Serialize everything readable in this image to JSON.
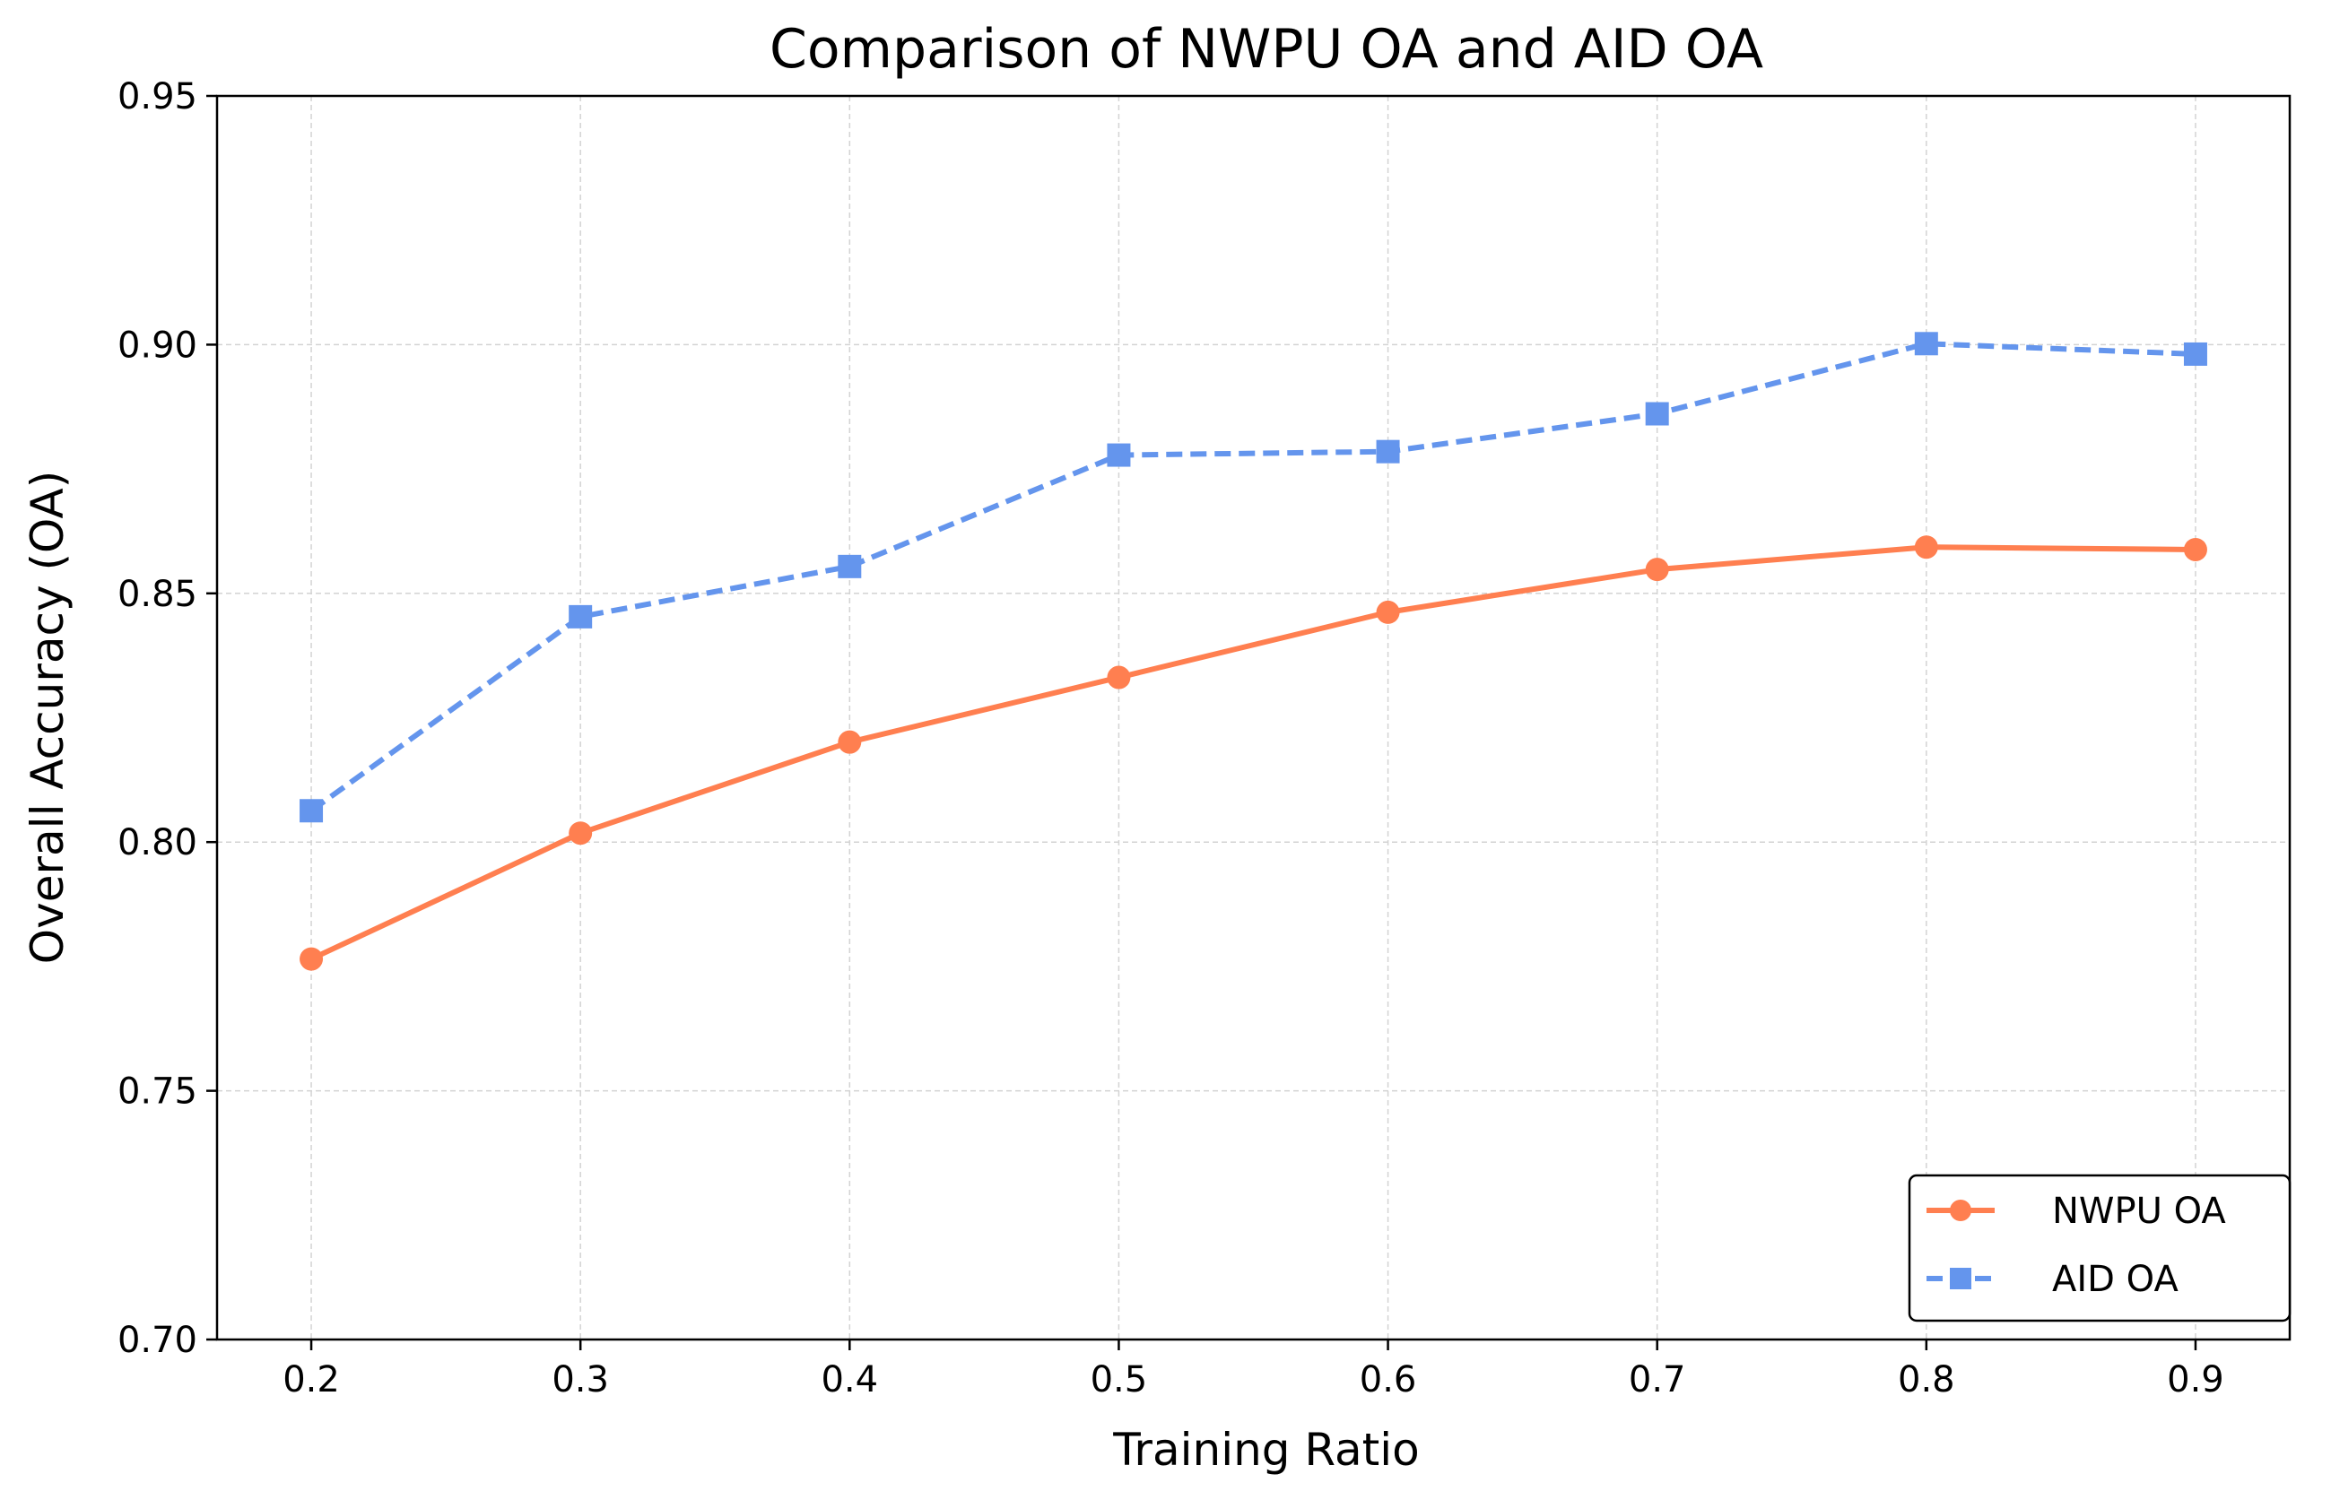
{
  "chart_data": {
    "type": "line",
    "title": "Comparison of NWPU OA and AID OA",
    "xlabel": "Training Ratio",
    "ylabel": "Overall Accuracy (OA)",
    "x": [
      0.2,
      0.3,
      0.4,
      0.5,
      0.6,
      0.7,
      0.8,
      0.9
    ],
    "xticks": [
      "0.2",
      "0.3",
      "0.4",
      "0.5",
      "0.6",
      "0.7",
      "0.8",
      "0.9"
    ],
    "yticks": [
      "0.70",
      "0.75",
      "0.80",
      "0.85",
      "0.90",
      "0.95"
    ],
    "ylim": [
      0.7,
      0.95
    ],
    "xlim": [
      0.165,
      0.935
    ],
    "grid": true,
    "legend_position": "lower-right",
    "series": [
      {
        "name": "NWPU OA",
        "values": [
          0.7765,
          0.8018,
          0.8201,
          0.8331,
          0.8462,
          0.8548,
          0.8593,
          0.8588
        ],
        "color": "#FF7F50",
        "marker": "circle",
        "linestyle": "solid"
      },
      {
        "name": "AID OA",
        "values": [
          0.8063,
          0.8453,
          0.8554,
          0.8778,
          0.8785,
          0.8861,
          0.9002,
          0.8981
        ],
        "color": "#6495ED",
        "marker": "square",
        "linestyle": "dashed"
      }
    ]
  }
}
